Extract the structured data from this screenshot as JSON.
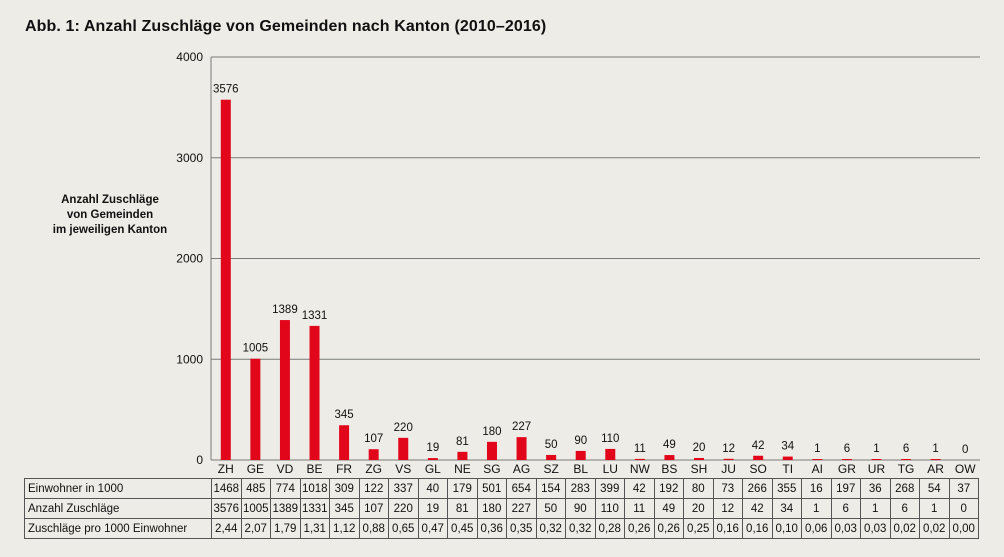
{
  "title": "Abb. 1: Anzahl Zuschläge von Gemeinden nach Kanton (2010–2016)",
  "y_axis_label_lines": [
    "Anzahl Zuschläge",
    "von Gemeinden",
    "im jeweiligen Kanton"
  ],
  "chart_data": {
    "type": "bar",
    "categories": [
      "ZH",
      "GE",
      "VD",
      "BE",
      "FR",
      "ZG",
      "VS",
      "GL",
      "NE",
      "SG",
      "AG",
      "SZ",
      "BL",
      "LU",
      "NW",
      "BS",
      "SH",
      "JU",
      "SO",
      "TI",
      "AI",
      "GR",
      "UR",
      "TG",
      "AR",
      "OW"
    ],
    "values": [
      3576,
      1005,
      1389,
      1331,
      345,
      107,
      220,
      19,
      81,
      180,
      227,
      50,
      90,
      110,
      11,
      49,
      20,
      12,
      42,
      34,
      1,
      6,
      1,
      6,
      1,
      0
    ],
    "ylim": [
      0,
      4000
    ],
    "yticks": [
      "0",
      "1000",
      "2000",
      "3000",
      "4000"
    ],
    "bar_color": "#e2061b",
    "grid": true
  },
  "table": {
    "rows": [
      {
        "label": "Einwohner in 1000",
        "values": [
          "1468",
          "485",
          "774",
          "1018",
          "309",
          "122",
          "337",
          "40",
          "179",
          "501",
          "654",
          "154",
          "283",
          "399",
          "42",
          "192",
          "80",
          "73",
          "266",
          "355",
          "16",
          "197",
          "36",
          "268",
          "54",
          "37"
        ]
      },
      {
        "label": "Anzahl Zuschläge",
        "values": [
          "3576",
          "1005",
          "1389",
          "1331",
          "345",
          "107",
          "220",
          "19",
          "81",
          "180",
          "227",
          "50",
          "90",
          "110",
          "11",
          "49",
          "20",
          "12",
          "42",
          "34",
          "1",
          "6",
          "1",
          "6",
          "1",
          "0"
        ]
      },
      {
        "label": "Zuschläge pro 1000 Einwohner",
        "values": [
          "2,44",
          "2,07",
          "1,79",
          "1,31",
          "1,12",
          "0,88",
          "0,65",
          "0,47",
          "0,45",
          "0,36",
          "0,35",
          "0,32",
          "0,32",
          "0,28",
          "0,26",
          "0,26",
          "0,25",
          "0,16",
          "0,16",
          "0,10",
          "0,06",
          "0,03",
          "0,03",
          "0,02",
          "0,02",
          "0,00"
        ]
      }
    ]
  }
}
